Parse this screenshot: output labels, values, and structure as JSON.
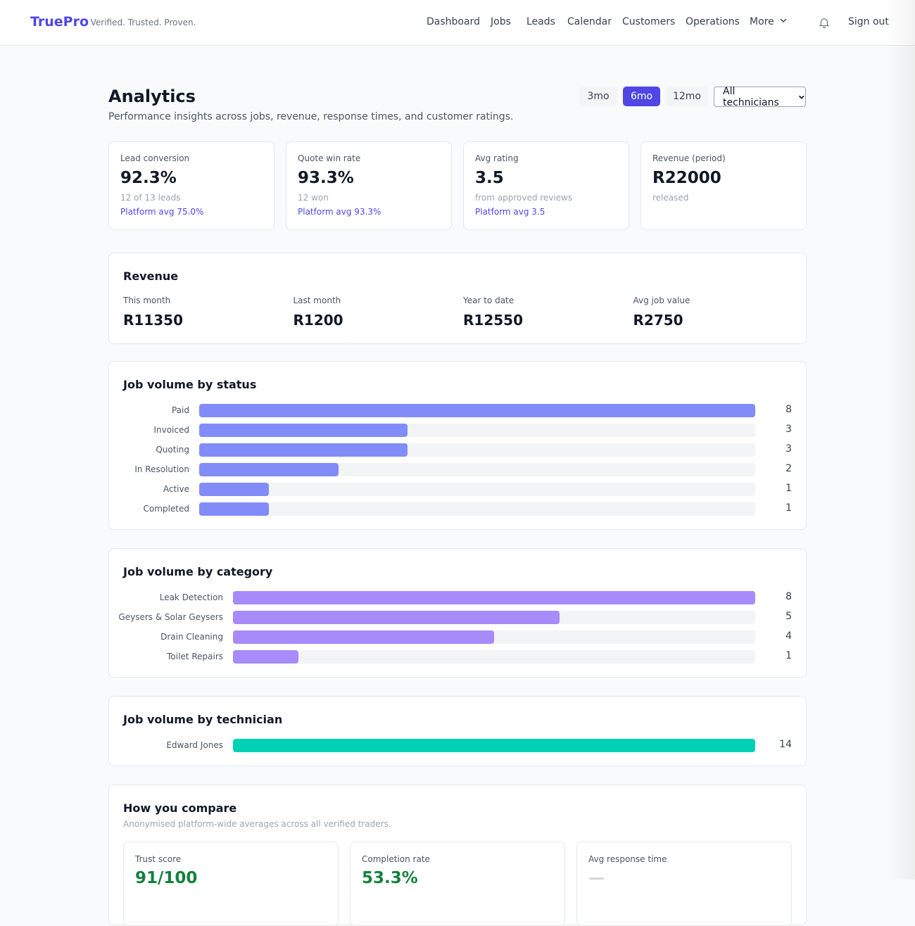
{
  "header": {
    "logo": "TruePro",
    "tagline": "· Verified. Trusted. Proven.",
    "nav": [
      "Dashboard",
      "Jobs",
      "Leads",
      "Calendar",
      "Customers",
      "Operations"
    ],
    "more": "More",
    "sign_out": "Sign out"
  },
  "page": {
    "title": "Analytics",
    "subtitle": "Performance insights across jobs, revenue, response times, and customer ratings.",
    "ranges": [
      "3mo",
      "6mo",
      "12mo"
    ],
    "selected_range": "6mo",
    "technician_filter": "All technicians"
  },
  "kpis": [
    {
      "label": "Lead conversion",
      "value": "92.3%",
      "sub": "12 of 13 leads",
      "platform": "Platform avg 75.0%"
    },
    {
      "label": "Quote win rate",
      "value": "93.3%",
      "sub": "12 won",
      "platform": "Platform avg 93.3%"
    },
    {
      "label": "Avg rating",
      "value": "3.5",
      "sub": "from approved reviews",
      "platform": "Platform avg 3.5"
    },
    {
      "label": "Revenue (period)",
      "value": "R22000",
      "sub": "released"
    }
  ],
  "revenue": {
    "title": "Revenue",
    "items": [
      {
        "label": "This month",
        "value": "R11350"
      },
      {
        "label": "Last month",
        "value": "R1200"
      },
      {
        "label": "Year to date",
        "value": "R12550"
      },
      {
        "label": "Avg job value",
        "value": "R2750"
      }
    ]
  },
  "charts": [
    {
      "title": "Job volume by status",
      "color": "#818cf8",
      "categories": [
        "Paid",
        "Invoiced",
        "Quoting",
        "In Resolution",
        "Active",
        "Completed"
      ],
      "values": [
        8,
        3,
        3,
        2,
        1,
        1
      ]
    },
    {
      "title": "Job volume by category",
      "color": "#a78bfa",
      "categories": [
        "Leak Detection",
        "Geysers & Solar Geysers",
        "Drain Cleaning",
        "Toilet Repairs"
      ],
      "values": [
        8,
        5,
        4,
        1
      ]
    },
    {
      "title": "Job volume by technician",
      "color": "#00d1b5",
      "categories": [
        "Edward Jones"
      ],
      "values": [
        14
      ]
    }
  ],
  "compare": {
    "title": "How you compare",
    "subtitle": "Anonymised platform-wide averages across all verified traders.",
    "cards": [
      {
        "label": "Trust score",
        "value": "91/100"
      },
      {
        "label": "Completion rate",
        "value": "53.3%"
      },
      {
        "label": "Avg response time",
        "value": "—"
      }
    ]
  }
}
